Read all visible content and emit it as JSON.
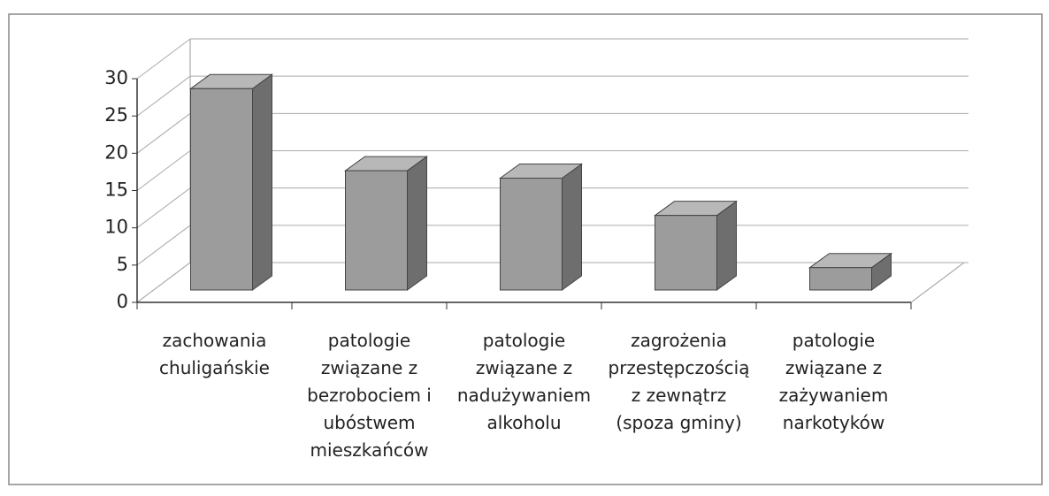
{
  "chart_data": {
    "type": "bar3d",
    "categories": [
      "zachowania\nchuligańskie",
      "patologie\nzwiązane z\nbezrobociem i\nubóstwem\nmieszkańców",
      "patologie\nzwiązane z\nnadużywaniem\nalkoholu",
      "zagrożenia\nprzestępczością\nz zewnątrz\n(spoza gminy)",
      "patologie\nzwiązane z\nzażywaniem\nnarkotyków"
    ],
    "values": [
      27,
      16,
      15,
      10,
      3
    ],
    "color": "#9c9c9c",
    "ylim": [
      0,
      30
    ],
    "yticks": [
      0,
      5,
      10,
      15,
      20,
      25,
      30
    ],
    "grid": true
  }
}
